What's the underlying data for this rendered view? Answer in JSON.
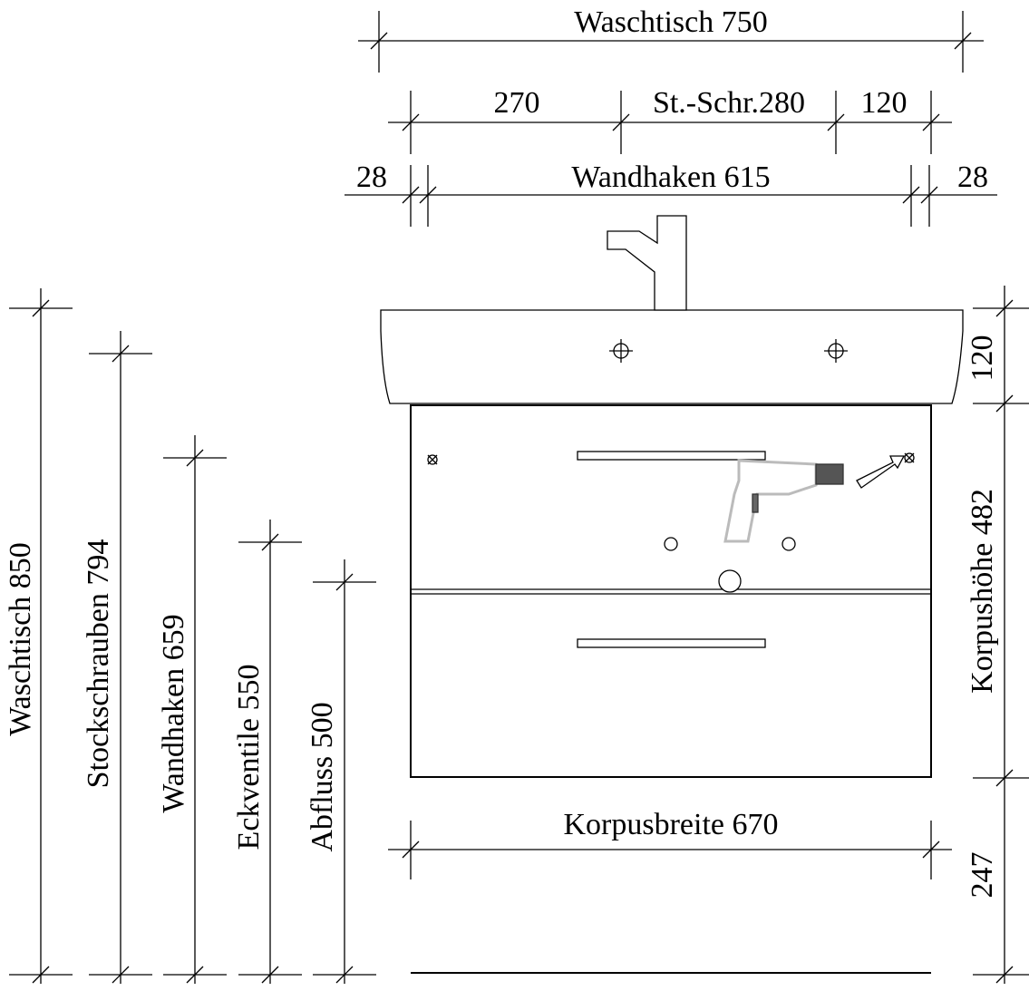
{
  "top_dimensions": {
    "overall": "Waschtisch 750",
    "segments": [
      "270",
      "St.-Schr.280",
      "120"
    ],
    "hooks": [
      "28",
      "Wandhaken 615",
      "28"
    ]
  },
  "left_dimensions": [
    "Waschtisch 850",
    "Stockschrauben 794",
    "Wandhaken 659",
    "Eckventile 550",
    "Abfluss 500"
  ],
  "right_dimensions": [
    "120",
    "Korpushöhe 482",
    "247"
  ],
  "bottom_dimension": "Korpusbreite 670"
}
